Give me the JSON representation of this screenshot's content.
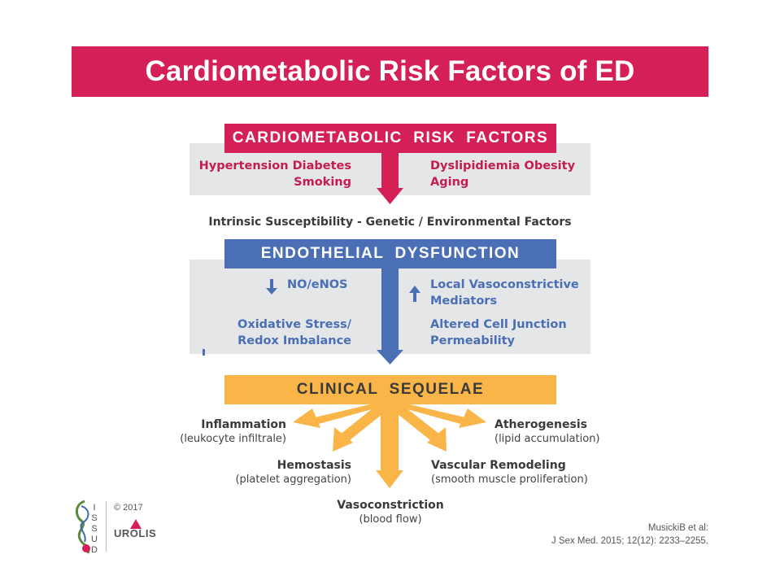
{
  "title": "Cardiometabolic Risk Factors of ED",
  "risk": {
    "header": "CARDIOMETABOLIC  RISK  FACTORS",
    "left_line1": "Hypertension Diabetes",
    "left_line2": "Smoking",
    "right_line1": "Dyslipidiemia Obesity",
    "right_line2": "Aging"
  },
  "intrinsic": "Intrinsic Susceptibility - Genetic / Environmental Factors",
  "endo": {
    "header": "ENDOTHELIAL  DYSFUNCTION",
    "no": "NO/eNOS",
    "ox1": "Oxidative Stress/",
    "ox2": "Redox Imbalance",
    "vaso1": "Local Vasoconstrictive",
    "vaso2": "Mediators",
    "junc1": "Altered Cell Junction",
    "junc2": "Permeability"
  },
  "sequelae": {
    "header": "CLINICAL  SEQUELAE",
    "inflammation": "Inflammation",
    "inflammation_sub": "(leukocyte infiltrale)",
    "hemostasis": "Hemostasis",
    "hemostasis_sub": "(platelet aggregation)",
    "vasoconstriction": "Vasoconstriction",
    "vasoconstriction_sub": "(blood flow)",
    "remodeling": "Vascular Remodeling",
    "remodeling_sub": "(smooth muscle proliferation)",
    "athero": "Atherogenesis",
    "athero_sub": "(lipid accumulation)"
  },
  "footer": {
    "copyright": "© 2017",
    "logo_letters": [
      "I",
      "S",
      "S",
      "U",
      "D"
    ],
    "urolis": "UROLIS",
    "citation1": "MusickiB et al:",
    "citation2": "J Sex Med. 2015; 12(12): 2233–2255."
  },
  "colors": {
    "title": "#d51f57",
    "risk": "#d51f57",
    "endo": "#4a6fb5",
    "sequelae": "#f9b548",
    "gray": "#e4e6e8"
  }
}
